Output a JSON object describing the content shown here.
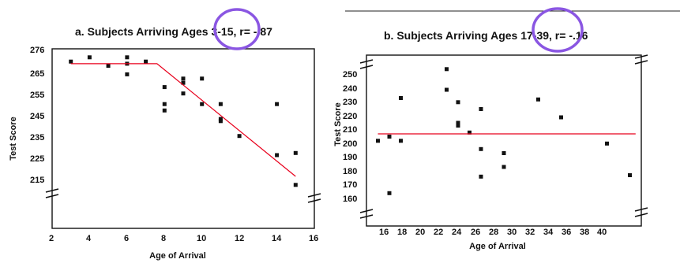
{
  "chart_data": [
    {
      "type": "scatter",
      "title": "a.  Subjects Arriving Ages 3-15,  r= -.87",
      "xlabel": "Age of Arrival",
      "ylabel": "Test Score",
      "xlim": [
        2,
        16
      ],
      "ylim": [
        205,
        276
      ],
      "x_ticks": [
        "2",
        "4",
        "6",
        "8",
        "10",
        "12",
        "14",
        "16"
      ],
      "y_ticks": [
        "276",
        "265",
        "255",
        "245",
        "235",
        "225",
        "215"
      ],
      "axis_break": true,
      "grid": false,
      "points": [
        {
          "x": 3,
          "y": 270
        },
        {
          "x": 4,
          "y": 272
        },
        {
          "x": 5,
          "y": 268
        },
        {
          "x": 6,
          "y": 272
        },
        {
          "x": 6,
          "y": 269
        },
        {
          "x": 6,
          "y": 264
        },
        {
          "x": 7,
          "y": 270
        },
        {
          "x": 8,
          "y": 258
        },
        {
          "x": 8,
          "y": 250
        },
        {
          "x": 8,
          "y": 247
        },
        {
          "x": 9,
          "y": 262
        },
        {
          "x": 9,
          "y": 260
        },
        {
          "x": 9,
          "y": 255
        },
        {
          "x": 10,
          "y": 262
        },
        {
          "x": 10,
          "y": 250
        },
        {
          "x": 11,
          "y": 250
        },
        {
          "x": 11,
          "y": 243
        },
        {
          "x": 11,
          "y": 242
        },
        {
          "x": 12,
          "y": 235
        },
        {
          "x": 14,
          "y": 250
        },
        {
          "x": 14,
          "y": 226
        },
        {
          "x": 15,
          "y": 227
        },
        {
          "x": 15,
          "y": 212
        }
      ],
      "fit_line": [
        {
          "x": 3,
          "y": 269
        },
        {
          "x": 7.6,
          "y": 269
        },
        {
          "x": 15,
          "y": 216
        }
      ],
      "fit_color": "#e8001c",
      "highlight": {
        "label": "3-15",
        "color": "#8a56e2"
      }
    },
    {
      "type": "scatter",
      "title": "b.  Subjects Arriving Ages 17-39,  r= -.16",
      "xlabel": "Age of Arrival",
      "ylabel": "Test Score",
      "xlim": [
        16,
        40
      ],
      "ylim": [
        140,
        262
      ],
      "x_ticks": [
        "16",
        "18",
        "20",
        "22",
        "24",
        "26",
        "28",
        "30",
        "32",
        "34",
        "36",
        "38",
        "40"
      ],
      "y_ticks": [
        "250",
        "240",
        "230",
        "220",
        "210",
        "200",
        "190",
        "180",
        "170",
        "160"
      ],
      "axis_break": true,
      "grid": false,
      "points": [
        {
          "x": 17,
          "y": 201
        },
        {
          "x": 18,
          "y": 204
        },
        {
          "x": 18,
          "y": 163
        },
        {
          "x": 19,
          "y": 232
        },
        {
          "x": 19,
          "y": 201
        },
        {
          "x": 23,
          "y": 253
        },
        {
          "x": 23,
          "y": 238
        },
        {
          "x": 24,
          "y": 229
        },
        {
          "x": 24,
          "y": 214
        },
        {
          "x": 24,
          "y": 212
        },
        {
          "x": 25,
          "y": 207
        },
        {
          "x": 26,
          "y": 224
        },
        {
          "x": 26,
          "y": 195
        },
        {
          "x": 26,
          "y": 175
        },
        {
          "x": 28,
          "y": 192
        },
        {
          "x": 28,
          "y": 182
        },
        {
          "x": 31,
          "y": 231
        },
        {
          "x": 33,
          "y": 218
        },
        {
          "x": 37,
          "y": 199
        },
        {
          "x": 39,
          "y": 176
        }
      ],
      "fit_line": [
        {
          "x": 17,
          "y": 206
        },
        {
          "x": 39.5,
          "y": 206
        }
      ],
      "fit_color": "#e8001c",
      "highlight": {
        "label": "17-39",
        "color": "#8a56e2"
      }
    }
  ]
}
